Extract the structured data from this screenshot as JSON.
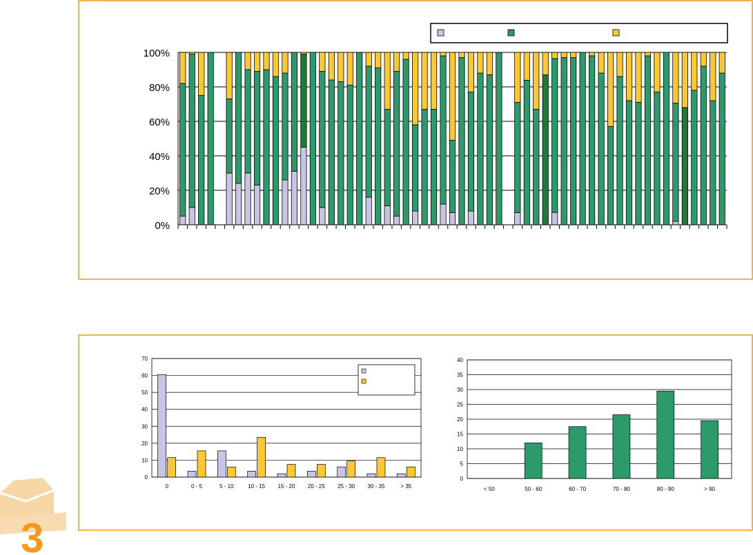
{
  "colors": {
    "panel_border": "#f3b24a",
    "series_lavender": "#c9c3e6",
    "series_green": "#2d9a6c",
    "series_green_dark": "#1f7a3a",
    "series_yellow": "#fcc832",
    "logo_orange": "#f39a1e",
    "logo_light": "#f7d7a8"
  },
  "logo": {
    "text": "3"
  },
  "chart_data": [
    {
      "type": "bar",
      "stacked": "percent",
      "legend": {
        "placement": "top-right",
        "entries": [
          "",
          "",
          ""
        ]
      },
      "ylim": [
        0,
        100
      ],
      "yticks": [
        "0%",
        "20%",
        "40%",
        "60%",
        "80%",
        "100%"
      ],
      "grid": true,
      "series_colors": [
        "#c9c3e6",
        "#2d9a6c",
        "#fcc832"
      ],
      "highlight_bars": [
        13,
        39,
        54
      ],
      "values_bottom": [
        5,
        10,
        0,
        0,
        0,
        30,
        24,
        30,
        23,
        0,
        0,
        26,
        31,
        45,
        0,
        10,
        0,
        0,
        0,
        0,
        16,
        0,
        11,
        5,
        0,
        8,
        0,
        0,
        12,
        7,
        0,
        8,
        0,
        0,
        0,
        0,
        7,
        0,
        0,
        0,
        8,
        0,
        0,
        0,
        0,
        0,
        0,
        0,
        0,
        0,
        0,
        0,
        0,
        2,
        0,
        0,
        0,
        0,
        0
      ],
      "values_middle": [
        77,
        89,
        75,
        100,
        0,
        43,
        76,
        60,
        66,
        90,
        86,
        62,
        69,
        54,
        100,
        79,
        84,
        83,
        81,
        100,
        76,
        91,
        56,
        84,
        96,
        50,
        67,
        67,
        86,
        42,
        97,
        69,
        88,
        87,
        100,
        0,
        64,
        78,
        67,
        80,
        100,
        97,
        97,
        100,
        98,
        88,
        57,
        86,
        72,
        71,
        98,
        77,
        100,
        70,
        68,
        78,
        92,
        72,
        88
      ],
      "values_top": [
        18,
        1,
        25,
        0,
        0,
        27,
        0,
        10,
        11,
        10,
        14,
        12,
        0,
        1,
        0,
        11,
        16,
        17,
        19,
        0,
        8,
        9,
        33,
        11,
        4,
        42,
        33,
        33,
        2,
        51,
        3,
        23,
        12,
        13,
        0,
        0,
        29,
        15,
        33,
        12,
        4,
        3,
        3,
        0,
        2,
        12,
        43,
        14,
        28,
        29,
        2,
        23,
        0,
        30,
        32,
        22,
        8,
        28,
        12
      ]
    },
    {
      "type": "bar",
      "categories": [
        "0",
        "0 - 5",
        "5 - 10",
        "10 - 15",
        "15 - 20",
        "20 - 25",
        "25 - 30",
        "30 - 35",
        "> 35"
      ],
      "series": [
        {
          "values": [
            60.5,
            3.5,
            15.5,
            3.5,
            2,
            3.5,
            6,
            2,
            2
          ]
        },
        {
          "values": [
            11.5,
            15.5,
            6,
            23.5,
            7.5,
            7.5,
            9.5,
            11.5,
            6
          ]
        }
      ],
      "ylim": [
        0,
        70
      ],
      "yticks": [
        0,
        10,
        20,
        30,
        40,
        50,
        60,
        70
      ],
      "legend": {
        "placement": "top-right",
        "entries": [
          "",
          ""
        ]
      },
      "grid": true
    },
    {
      "type": "bar",
      "categories": [
        "< 50",
        "50 - 60",
        "60 - 70",
        "70 - 80",
        "80 - 90",
        "> 90"
      ],
      "values": [
        0,
        12,
        17.5,
        21.5,
        29.5,
        19.5
      ],
      "ylim": [
        0,
        40
      ],
      "yticks": [
        0,
        5,
        10,
        15,
        20,
        25,
        30,
        35,
        40
      ],
      "grid": true
    }
  ]
}
